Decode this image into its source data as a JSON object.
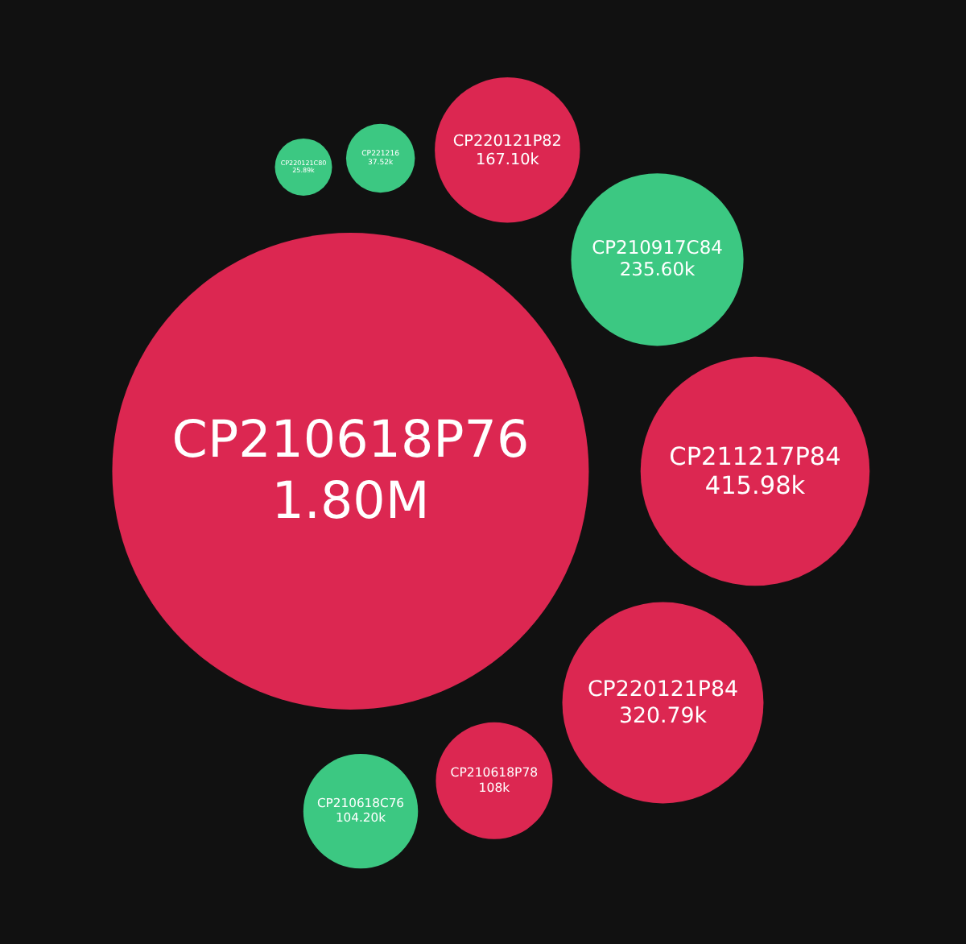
{
  "chart_data": {
    "type": "other",
    "categories": [
      "CP210618P76",
      "CP211217P84",
      "CP220121P84",
      "CP210917C84",
      "CP220121P82",
      "CP210618P78",
      "CP210618C76",
      "CP221216",
      "CP220121C80"
    ],
    "values": [
      1800000,
      415980,
      320790,
      235600,
      167100,
      108000,
      104200,
      37520,
      25890
    ],
    "value_labels": [
      "1.80M",
      "415.98k",
      "320.79k",
      "235.60k",
      "167.10k",
      "108k",
      "104.20k",
      "37.52k",
      "25.89k"
    ],
    "colors": [
      "#dc2751",
      "#dc2751",
      "#dc2751",
      "#3cc882",
      "#dc2751",
      "#dc2751",
      "#3cc882",
      "#3cc882",
      "#3cc882"
    ]
  }
}
